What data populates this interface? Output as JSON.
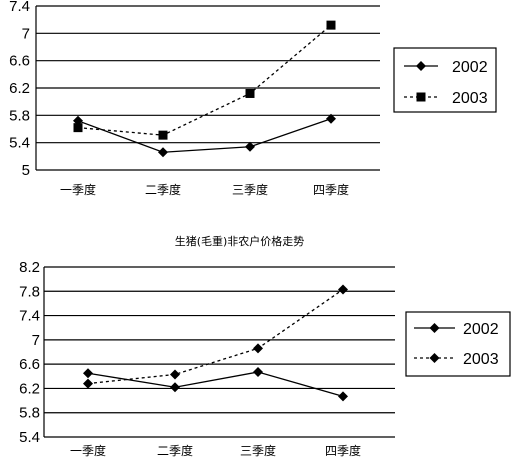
{
  "chart_data": [
    {
      "type": "line",
      "title": "",
      "xlabel": "",
      "ylabel": "",
      "categories": [
        "一季度",
        "二季度",
        "三季度",
        "四季度"
      ],
      "y_ticks": [
        "5",
        "5.4",
        "5.8",
        "6.2",
        "6.6",
        "7",
        "7.4"
      ],
      "ylim": [
        5,
        7.4
      ],
      "grid": "horizontal",
      "legend": "right",
      "series": [
        {
          "name": "2002",
          "values": [
            5.72,
            5.26,
            5.34,
            5.75
          ],
          "marker": "diamond",
          "line": "solid",
          "color": "#000000"
        },
        {
          "name": "2003",
          "values": [
            5.62,
            5.51,
            6.12,
            7.12
          ],
          "marker": "square",
          "line": "dashed",
          "color": "#000000"
        }
      ]
    },
    {
      "type": "line",
      "title": "生猪(毛重)非农户价格走势",
      "xlabel": "",
      "ylabel": "",
      "categories": [
        "一季度",
        "二季度",
        "三季度",
        "四季度"
      ],
      "y_ticks": [
        "5.4",
        "5.8",
        "6.2",
        "6.6",
        "7",
        "7.4",
        "7.8",
        "8.2"
      ],
      "ylim": [
        5.4,
        8.2
      ],
      "grid": "horizontal",
      "legend": "right",
      "series": [
        {
          "name": "2002",
          "values": [
            6.45,
            6.22,
            6.47,
            6.07
          ],
          "marker": "diamond",
          "line": "solid",
          "color": "#000000"
        },
        {
          "name": "2003",
          "values": [
            6.28,
            6.43,
            6.86,
            7.83
          ],
          "marker": "diamond",
          "line": "dashed",
          "color": "#000000"
        }
      ]
    }
  ]
}
